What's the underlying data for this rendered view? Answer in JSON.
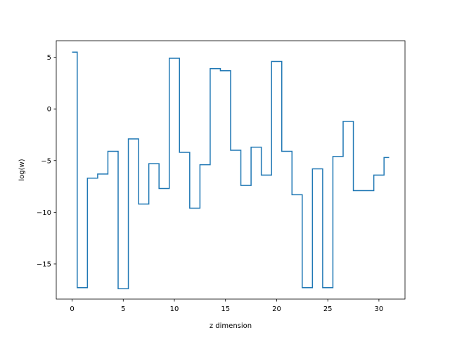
{
  "chart_data": {
    "type": "line",
    "drawstyle": "steps-mid",
    "xlabel": "z dimension",
    "ylabel": "log(w)",
    "xlim": [
      -1.55,
      32.55
    ],
    "ylim": [
      -18.4,
      6.6
    ],
    "xticks": [
      0,
      5,
      10,
      15,
      20,
      25,
      30
    ],
    "yticks": [
      -15,
      -10,
      -5,
      0,
      5
    ],
    "ytick_labels": [
      "−15",
      "−10",
      "−5",
      "0",
      "5"
    ],
    "grid": false,
    "series": [
      {
        "color": "#1f77b4",
        "x": [
          0,
          1,
          2,
          3,
          4,
          5,
          6,
          7,
          8,
          9,
          10,
          11,
          12,
          13,
          14,
          15,
          16,
          17,
          18,
          19,
          20,
          21,
          22,
          23,
          24,
          25,
          26,
          27,
          28,
          29,
          30,
          31
        ],
        "y": [
          5.5,
          -17.3,
          -6.7,
          -6.3,
          -4.1,
          -17.4,
          -2.9,
          -9.2,
          -5.3,
          -7.7,
          4.9,
          -4.2,
          -9.6,
          -5.4,
          3.9,
          3.7,
          -4.0,
          -7.4,
          -3.7,
          -6.4,
          4.6,
          -4.1,
          -8.3,
          -17.3,
          -5.8,
          -17.3,
          -4.6,
          -1.2,
          -7.9,
          -7.9,
          -6.4,
          -4.7
        ]
      }
    ]
  }
}
